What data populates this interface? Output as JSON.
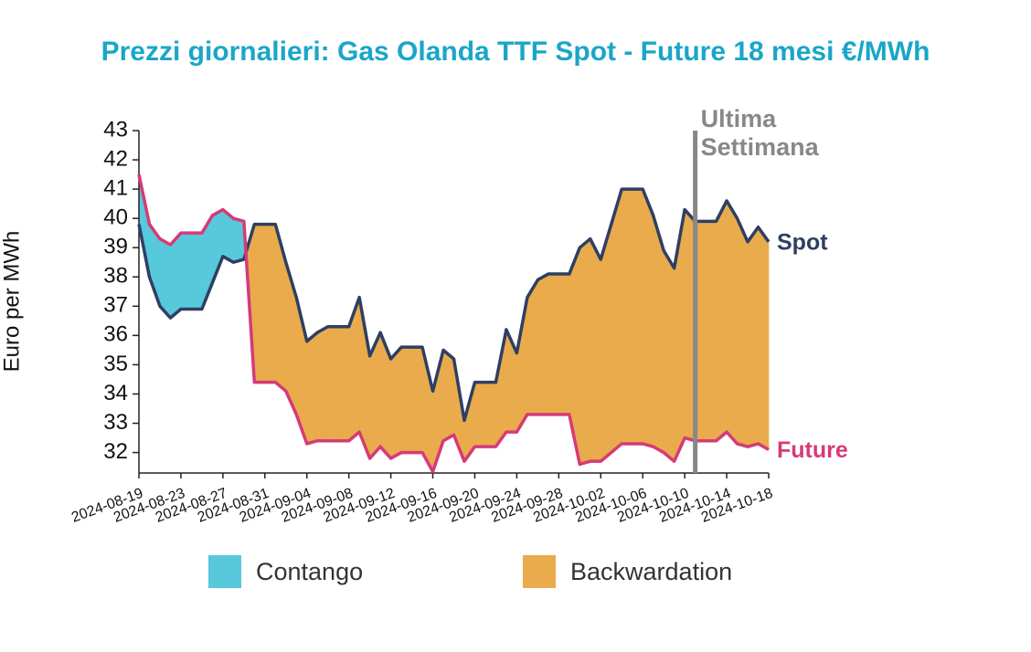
{
  "chart_data": {
    "type": "line",
    "title": "Prezzi giornalieri: Gas Olanda TTF Spot - Future 18 mesi €/MWh",
    "y_label": "Euro per MWh",
    "x": [
      "2024-08-19",
      "2024-08-20",
      "2024-08-21",
      "2024-08-22",
      "2024-08-23",
      "2024-08-24",
      "2024-08-25",
      "2024-08-26",
      "2024-08-27",
      "2024-08-28",
      "2024-08-29",
      "2024-08-30",
      "2024-08-31",
      "2024-09-01",
      "2024-09-02",
      "2024-09-03",
      "2024-09-04",
      "2024-09-05",
      "2024-09-06",
      "2024-09-07",
      "2024-09-08",
      "2024-09-09",
      "2024-09-10",
      "2024-09-11",
      "2024-09-12",
      "2024-09-13",
      "2024-09-14",
      "2024-09-15",
      "2024-09-16",
      "2024-09-17",
      "2024-09-18",
      "2024-09-19",
      "2024-09-20",
      "2024-09-21",
      "2024-09-22",
      "2024-09-23",
      "2024-09-24",
      "2024-09-25",
      "2024-09-26",
      "2024-09-27",
      "2024-09-28",
      "2024-09-29",
      "2024-09-30",
      "2024-10-01",
      "2024-10-02",
      "2024-10-03",
      "2024-10-04",
      "2024-10-05",
      "2024-10-06",
      "2024-10-07",
      "2024-10-08",
      "2024-10-09",
      "2024-10-10",
      "2024-10-11",
      "2024-10-12",
      "2024-10-13",
      "2024-10-14",
      "2024-10-15",
      "2024-10-16",
      "2024-10-17",
      "2024-10-18"
    ],
    "series": [
      {
        "name": "Spot",
        "color": "#2e3f63",
        "values": [
          39.8,
          38.0,
          37.0,
          36.6,
          36.9,
          36.9,
          36.9,
          37.8,
          38.7,
          38.5,
          38.6,
          39.8,
          39.8,
          39.8,
          38.5,
          37.3,
          35.8,
          36.1,
          36.3,
          36.3,
          36.3,
          37.3,
          35.3,
          36.1,
          35.2,
          35.6,
          35.6,
          35.6,
          34.1,
          35.5,
          35.2,
          33.1,
          34.4,
          34.4,
          34.4,
          36.2,
          35.4,
          37.3,
          37.9,
          38.1,
          38.1,
          38.1,
          39.0,
          39.3,
          38.6,
          39.8,
          41.0,
          41.0,
          41.0,
          40.1,
          38.9,
          38.3,
          40.3,
          39.9,
          39.9,
          39.9,
          40.6,
          40.0,
          39.2,
          39.7,
          39.2
        ]
      },
      {
        "name": "Future",
        "color": "#d63a78",
        "values": [
          41.5,
          39.8,
          39.3,
          39.1,
          39.5,
          39.5,
          39.5,
          40.1,
          40.3,
          40.0,
          39.9,
          34.4,
          34.4,
          34.4,
          34.1,
          33.3,
          32.3,
          32.4,
          32.4,
          32.4,
          32.4,
          32.7,
          31.8,
          32.2,
          31.8,
          32.0,
          32.0,
          32.0,
          31.35,
          32.4,
          32.6,
          31.7,
          32.2,
          32.2,
          32.2,
          32.7,
          32.7,
          33.3,
          33.3,
          33.3,
          33.3,
          33.3,
          31.6,
          31.7,
          31.7,
          32.0,
          32.3,
          32.3,
          32.3,
          32.2,
          32.0,
          31.7,
          32.5,
          32.4,
          32.4,
          32.4,
          32.7,
          32.3,
          32.2,
          32.3,
          32.1
        ]
      }
    ],
    "fills": [
      {
        "name": "Contango",
        "color": "#58c8dc"
      },
      {
        "name": "Backwardation",
        "color": "#e9ab4b"
      }
    ],
    "annotation": {
      "x": "2024-10-11",
      "lines": [
        "Ultima",
        "Settimana"
      ],
      "color": "#888888"
    },
    "xticks": [
      "2024-08-19",
      "2024-08-23",
      "2024-08-27",
      "2024-08-31",
      "2024-09-04",
      "2024-09-08",
      "2024-09-12",
      "2024-09-16",
      "2024-09-20",
      "2024-09-24",
      "2024-09-28",
      "2024-10-02",
      "2024-10-06",
      "2024-10-10",
      "2024-10-14",
      "2024-10-18"
    ],
    "ylim": [
      31.3,
      43
    ],
    "yticks": [
      32,
      33,
      34,
      35,
      36,
      37,
      38,
      39,
      40,
      41,
      42,
      43
    ]
  }
}
